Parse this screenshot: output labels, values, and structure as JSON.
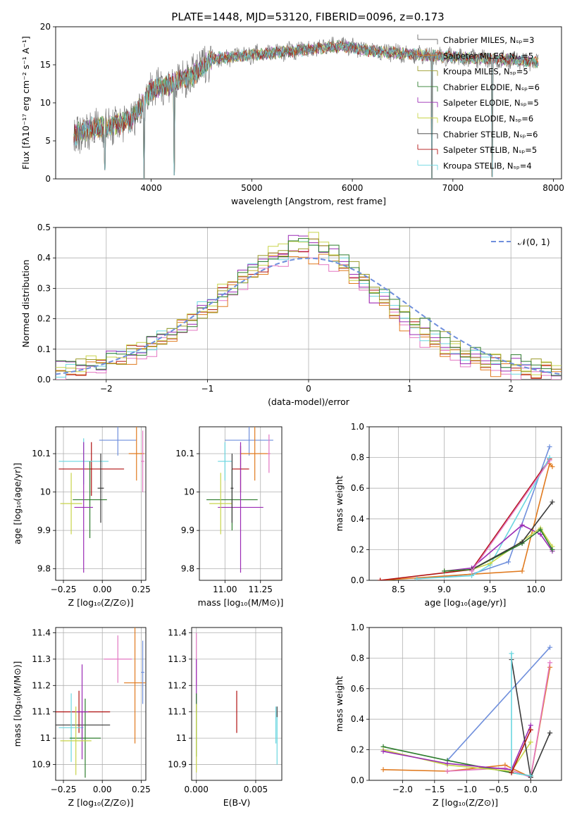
{
  "title": "PLATE=1448, MJD=53120, FIBERID=0096, z=0.173",
  "colors": [
    "#6d6d6d",
    "#e07a1f",
    "#9b9b2b",
    "#2e7d2e",
    "#9b2bb5",
    "#c8d44a",
    "#3a3a3a",
    "#b01010",
    "#6ad6e0",
    "#6f8fdc",
    "#e377c2",
    "#aaaaaa"
  ],
  "chart_data": [
    {
      "type": "line",
      "id": "spectrum",
      "xlabel": "wavelength [Angstrom, rest frame]",
      "ylabel": "Flux [fλ10⁻¹⁷ erg cm⁻² s⁻¹ A⁻¹]",
      "xlim": [
        3050,
        8080
      ],
      "ylim": [
        0,
        20
      ],
      "xticks": [
        4000,
        5000,
        6000,
        7000,
        8000
      ],
      "yticks": [
        0,
        5,
        10,
        15,
        20
      ],
      "legend": [
        "Chabrier MILES, Nₛₚ=3",
        "Salpeter MILES, Nₛₚ=5",
        "Kroupa MILES, Nₛₚ=5",
        "Chabrier ELODIE, Nₛₚ=6",
        "Salpeter ELODIE, Nₛₚ=5",
        "Kroupa ELODIE, Nₛₚ=6",
        "Chabrier STELIB, Nₛₚ=6",
        "Salpeter STELIB, Nₛₚ=5",
        "Kroupa STELIB, Nₛₚ=4"
      ],
      "legend_location": "right",
      "data_range": [
        3230,
        7850
      ],
      "continuum": [
        [
          3230,
          5.8
        ],
        [
          3400,
          6.6
        ],
        [
          3600,
          6.9
        ],
        [
          3800,
          7.8
        ],
        [
          3900,
          9.5
        ],
        [
          4000,
          11.8
        ],
        [
          4200,
          12.5
        ],
        [
          4400,
          13.5
        ],
        [
          4600,
          15.8
        ],
        [
          5000,
          16.3
        ],
        [
          5500,
          16.9
        ],
        [
          5900,
          17.5
        ],
        [
          6200,
          16.8
        ],
        [
          6800,
          16.2
        ],
        [
          7200,
          15.9
        ],
        [
          7600,
          15.6
        ],
        [
          7850,
          15.3
        ]
      ],
      "dips": [
        [
          3540,
          1.2
        ],
        [
          3930,
          0
        ],
        [
          4230,
          0.5
        ],
        [
          6790,
          0
        ],
        [
          7390,
          0.3
        ]
      ]
    },
    {
      "type": "line",
      "id": "residuals",
      "xlabel": "(data-model)/error",
      "ylabel": "Normed distribution",
      "xlim": [
        -2.5,
        2.5
      ],
      "ylim": [
        0,
        0.5
      ],
      "xticks": [
        -2,
        -1,
        0,
        1,
        2
      ],
      "xtick_labels": [
        "−2",
        "−1",
        "0",
        "1",
        "2"
      ],
      "yticks": [
        0,
        0.1,
        0.2,
        0.3,
        0.4,
        0.5
      ],
      "legend": [
        "𝒩(0, 1)"
      ],
      "bin_width": 0.1,
      "bins_start": -2.5,
      "series": [
        {
          "values": [
            0.02,
            0.02,
            0.03,
            0.03,
            0.04,
            0.05,
            0.06,
            0.07,
            0.08,
            0.1,
            0.12,
            0.14,
            0.16,
            0.18,
            0.21,
            0.23,
            0.26,
            0.29,
            0.32,
            0.34,
            0.36,
            0.38,
            0.39,
            0.4,
            0.41,
            0.4,
            0.39,
            0.38,
            0.36,
            0.33,
            0.3,
            0.27,
            0.24,
            0.21,
            0.18,
            0.15,
            0.13,
            0.11,
            0.09,
            0.07,
            0.06,
            0.05,
            0.04,
            0.03,
            0.03,
            0.02,
            0.02,
            0.02,
            0.02,
            0.01
          ]
        },
        {
          "values": [
            0.02,
            0.02,
            0.03,
            0.04,
            0.05,
            0.05,
            0.07,
            0.08,
            0.09,
            0.11,
            0.13,
            0.15,
            0.17,
            0.2,
            0.22,
            0.24,
            0.27,
            0.3,
            0.33,
            0.35,
            0.37,
            0.39,
            0.4,
            0.42,
            0.43,
            0.43,
            0.42,
            0.4,
            0.37,
            0.35,
            0.31,
            0.28,
            0.25,
            0.22,
            0.19,
            0.17,
            0.14,
            0.12,
            0.1,
            0.08,
            0.07,
            0.06,
            0.05,
            0.04,
            0.04,
            0.03,
            0.02,
            0.02,
            0.02,
            0.02
          ]
        },
        {
          "values": [
            0.02,
            0.03,
            0.03,
            0.04,
            0.04,
            0.06,
            0.07,
            0.07,
            0.09,
            0.1,
            0.12,
            0.14,
            0.16,
            0.19,
            0.21,
            0.24,
            0.27,
            0.29,
            0.32,
            0.35,
            0.38,
            0.4,
            0.42,
            0.44,
            0.45,
            0.44,
            0.42,
            0.39,
            0.36,
            0.33,
            0.3,
            0.26,
            0.24,
            0.21,
            0.18,
            0.15,
            0.13,
            0.11,
            0.09,
            0.08,
            0.06,
            0.05,
            0.04,
            0.04,
            0.03,
            0.03,
            0.02,
            0.02,
            0.02,
            0.02
          ]
        },
        {
          "values": [
            0.01,
            0.02,
            0.02,
            0.03,
            0.03,
            0.04,
            0.05,
            0.06,
            0.07,
            0.09,
            0.11,
            0.12,
            0.14,
            0.17,
            0.19,
            0.22,
            0.25,
            0.27,
            0.3,
            0.33,
            0.36,
            0.38,
            0.4,
            0.41,
            0.43,
            0.42,
            0.41,
            0.39,
            0.37,
            0.34,
            0.31,
            0.28,
            0.25,
            0.23,
            0.2,
            0.17,
            0.15,
            0.12,
            0.11,
            0.09,
            0.07,
            0.06,
            0.05,
            0.04,
            0.03,
            0.03,
            0.02,
            0.02,
            0.02,
            0.01
          ]
        }
      ],
      "gaussian": {
        "mean": 0,
        "sigma": 1
      }
    },
    {
      "type": "scatter",
      "id": "age-vs-Z",
      "xlabel": "Z [log₁₀(Z/Z⊙)]",
      "ylabel": "age  [log₁₀(age/yr)]",
      "xlim": [
        -0.3,
        0.28
      ],
      "ylim": [
        9.77,
        10.17
      ],
      "xticks": [
        -0.25,
        0,
        0.25
      ],
      "xtick_labels": [
        "−0.25",
        "0.00",
        "0.25"
      ],
      "yticks": [
        9.8,
        9.9,
        10.0,
        10.1
      ],
      "points": [
        {
          "x": 0.1,
          "y": 10.135,
          "xerr": 0.12,
          "yerr": 0.04,
          "c": 9
        },
        {
          "x": 0.22,
          "y": 10.1,
          "xerr": 0.05,
          "yerr": 0.07,
          "c": 1
        },
        {
          "x": -0.07,
          "y": 10.06,
          "xerr": 0.21,
          "yerr": 0.07,
          "c": 7
        },
        {
          "x": -0.12,
          "y": 10.08,
          "xerr": 0.16,
          "yerr": 0.06,
          "c": 8
        },
        {
          "x": -0.08,
          "y": 9.98,
          "xerr": 0.11,
          "yerr": 0.1,
          "c": 3
        },
        {
          "x": -0.12,
          "y": 9.96,
          "xerr": 0.06,
          "yerr": 0.17,
          "c": 4
        },
        {
          "x": -0.2,
          "y": 9.97,
          "xerr": 0.07,
          "yerr": 0.08,
          "c": 5
        },
        {
          "x": -0.01,
          "y": 10.01,
          "xerr": 0.02,
          "yerr": 0.09,
          "c": 6
        },
        {
          "x": 0.26,
          "y": 10.08,
          "xerr": 0.01,
          "yerr": 0.08,
          "c": 10
        }
      ]
    },
    {
      "type": "scatter",
      "id": "age-vs-mass",
      "xlabel": "mass [log₁₀(M/M⊙)]",
      "ylabel": "",
      "xlim": [
        10.82,
        11.4
      ],
      "ylim": [
        9.77,
        10.17
      ],
      "xticks": [
        11.0,
        11.25
      ],
      "xtick_labels": [
        "11.00",
        "11.25"
      ],
      "yticks": [
        9.8,
        9.9,
        10.0,
        10.1
      ],
      "points": [
        {
          "x": 11.17,
          "y": 10.135,
          "xerr": 0.17,
          "yerr": 0.04,
          "c": 9
        },
        {
          "x": 11.21,
          "y": 10.1,
          "xerr": 0.1,
          "yerr": 0.07,
          "c": 1
        },
        {
          "x": 11.11,
          "y": 10.06,
          "xerr": 0.06,
          "yerr": 0.06,
          "c": 7
        },
        {
          "x": 11.0,
          "y": 10.08,
          "xerr": 0.05,
          "yerr": 0.05,
          "c": 8
        },
        {
          "x": 11.05,
          "y": 9.98,
          "xerr": 0.18,
          "yerr": 0.08,
          "c": 3
        },
        {
          "x": 11.11,
          "y": 9.96,
          "xerr": 0.16,
          "yerr": 0.17,
          "c": 4
        },
        {
          "x": 10.97,
          "y": 9.97,
          "xerr": 0.08,
          "yerr": 0.08,
          "c": 5
        },
        {
          "x": 11.05,
          "y": 10.01,
          "xerr": 0.01,
          "yerr": 0.09,
          "c": 6
        },
        {
          "x": 11.31,
          "y": 10.1,
          "xerr": 0.01,
          "yerr": 0.05,
          "c": 10
        }
      ]
    },
    {
      "type": "line",
      "id": "massweight-vs-age",
      "xlabel": "age  [log₁₀(age/yr)]",
      "ylabel": "mass weight",
      "xlim": [
        8.18,
        10.28
      ],
      "ylim": [
        0,
        1.0
      ],
      "xticks": [
        8.5,
        9.0,
        9.5,
        10.0
      ],
      "xtick_labels": [
        "8.5",
        "9.0",
        "9.5",
        "10.0"
      ],
      "yticks": [
        0,
        0.2,
        0.4,
        0.6,
        0.8,
        1.0
      ],
      "series": [
        {
          "c": 9,
          "x": [
            8.7,
            9.3,
            9.7,
            10.15
          ],
          "y": [
            0.01,
            0.04,
            0.12,
            0.87
          ]
        },
        {
          "c": 1,
          "x": [
            8.3,
            9.3,
            9.85,
            10.15,
            10.18
          ],
          "y": [
            0.0,
            0.04,
            0.06,
            0.76,
            0.74
          ]
        },
        {
          "c": 7,
          "x": [
            8.3,
            9.3,
            10.15
          ],
          "y": [
            0.0,
            0.07,
            0.79
          ]
        },
        {
          "c": 8,
          "x": [
            8.7,
            9.3,
            9.5,
            10.15
          ],
          "y": [
            0.01,
            0.03,
            0.1,
            0.8
          ]
        },
        {
          "c": 4,
          "x": [
            9.0,
            9.3,
            9.85,
            10.05,
            10.18
          ],
          "y": [
            0.06,
            0.08,
            0.36,
            0.3,
            0.19
          ]
        },
        {
          "c": 5,
          "x": [
            9.0,
            9.3,
            9.5,
            10.05,
            10.18
          ],
          "y": [
            0.06,
            0.07,
            0.11,
            0.34,
            0.22
          ]
        },
        {
          "c": 3,
          "x": [
            9.0,
            9.3,
            9.85,
            10.05,
            10.18
          ],
          "y": [
            0.06,
            0.07,
            0.24,
            0.33,
            0.2
          ]
        },
        {
          "c": 6,
          "x": [
            9.3,
            9.85,
            10.18
          ],
          "y": [
            0.07,
            0.25,
            0.51
          ]
        },
        {
          "c": 10,
          "x": [
            9.3,
            10.15
          ],
          "y": [
            0.06,
            0.78
          ]
        }
      ]
    },
    {
      "type": "scatter",
      "id": "mass-vs-Z",
      "xlabel": "Z [log₁₀(Z/Z⊙)]",
      "ylabel": "mass [log₁₀(M/M⊙)]",
      "xlim": [
        -0.3,
        0.28
      ],
      "ylim": [
        10.84,
        11.42
      ],
      "xticks": [
        -0.25,
        0,
        0.25
      ],
      "xtick_labels": [
        "−0.25",
        "0.00",
        "0.25"
      ],
      "yticks": [
        10.9,
        11.0,
        11.1,
        11.2,
        11.3,
        11.4
      ],
      "points": [
        {
          "x": 0.1,
          "y": 11.3,
          "xerr": 0.09,
          "yerr": 0.09,
          "c": 10
        },
        {
          "x": 0.21,
          "y": 11.21,
          "xerr": 0.07,
          "yerr": 0.23,
          "c": 1
        },
        {
          "x": -0.15,
          "y": 11.1,
          "xerr": 0.2,
          "yerr": 0.08,
          "c": 7
        },
        {
          "x": -0.13,
          "y": 11.05,
          "xerr": 0.18,
          "yerr": 0.05,
          "c": 6
        },
        {
          "x": -0.2,
          "y": 11.04,
          "xerr": 0.08,
          "yerr": 0.13,
          "c": 8
        },
        {
          "x": -0.11,
          "y": 11.0,
          "xerr": 0.1,
          "yerr": 0.15,
          "c": 3
        },
        {
          "x": -0.13,
          "y": 11.1,
          "xerr": 0.04,
          "yerr": 0.18,
          "c": 4
        },
        {
          "x": -0.17,
          "y": 10.99,
          "xerr": 0.1,
          "yerr": 0.13,
          "c": 5
        },
        {
          "x": 0.26,
          "y": 11.25,
          "xerr": 0.01,
          "yerr": 0.12,
          "c": 9
        }
      ]
    },
    {
      "type": "scatter",
      "id": "mass-vs-ebv",
      "xlabel": "E(B-V)",
      "ylabel": "",
      "xlim": [
        -0.0004,
        0.0072
      ],
      "ylim": [
        10.84,
        11.42
      ],
      "xticks": [
        0,
        0.005
      ],
      "xtick_labels": [
        "0.000",
        "0.005"
      ],
      "yticks": [
        10.9,
        11.0,
        11.1,
        11.2,
        11.3,
        11.4
      ],
      "points": [
        {
          "x": 0.0,
          "y": 11.3,
          "xerr": 0,
          "yerr": 0.1,
          "c": 10
        },
        {
          "x": 0.0,
          "y": 11.2,
          "xerr": 0,
          "yerr": 0.1,
          "c": 4
        },
        {
          "x": 0.0,
          "y": 11.05,
          "xerr": 0,
          "yerr": 0.12,
          "c": 3
        },
        {
          "x": 0.0,
          "y": 11.0,
          "xerr": 0,
          "yerr": 0.13,
          "c": 5
        },
        {
          "x": 0.0034,
          "y": 11.1,
          "xerr": 0,
          "yerr": 0.08,
          "c": 7
        },
        {
          "x": 0.0067,
          "y": 11.05,
          "xerr": 0,
          "yerr": 0.07,
          "c": 8
        },
        {
          "x": 0.0068,
          "y": 11.0,
          "xerr": 0,
          "yerr": 0.1,
          "c": 8
        },
        {
          "x": 0.0068,
          "y": 11.1,
          "xerr": 0,
          "yerr": 0.02,
          "c": 6
        }
      ]
    },
    {
      "type": "line",
      "id": "massweight-vs-Z",
      "xlabel": "Z [log₁₀(Z/Z⊙)]",
      "ylabel": "mass weight",
      "xlim": [
        -2.52,
        0.48
      ],
      "ylim": [
        0,
        1.0
      ],
      "xticks": [
        -2.0,
        -1.5,
        -1.0,
        -0.5,
        0.0
      ],
      "xtick_labels": [
        "−2.0",
        "−1.5",
        "−1.0",
        "−0.5",
        "0.0"
      ],
      "yticks": [
        0,
        0.2,
        0.4,
        0.6,
        0.8,
        1.0
      ],
      "series": [
        {
          "c": 9,
          "x": [
            -1.3,
            0.3
          ],
          "y": [
            0.13,
            0.87
          ]
        },
        {
          "c": 1,
          "x": [
            -2.3,
            -1.3,
            -0.4,
            0.0,
            0.3
          ],
          "y": [
            0.07,
            0.06,
            0.1,
            0.02,
            0.74
          ]
        },
        {
          "c": 10,
          "x": [
            -1.3,
            -0.4,
            0.0,
            0.3
          ],
          "y": [
            0.06,
            0.08,
            0.02,
            0.77
          ]
        },
        {
          "c": 3,
          "x": [
            -2.3,
            -1.3,
            -0.3,
            0.0
          ],
          "y": [
            0.22,
            0.13,
            0.05,
            0.03
          ]
        },
        {
          "c": 5,
          "x": [
            -2.3,
            -1.3,
            -0.3,
            0.0
          ],
          "y": [
            0.2,
            0.1,
            0.06,
            0.25
          ]
        },
        {
          "c": 4,
          "x": [
            -2.3,
            -1.3,
            -0.3,
            0.0
          ],
          "y": [
            0.19,
            0.11,
            0.07,
            0.36
          ]
        },
        {
          "c": 6,
          "x": [
            -0.3,
            0.0,
            0.3
          ],
          "y": [
            0.79,
            0.02,
            0.31
          ]
        },
        {
          "c": 8,
          "x": [
            -0.3,
            -0.3,
            0.0
          ],
          "y": [
            0.83,
            0.05,
            0.03
          ]
        },
        {
          "c": 7,
          "x": [
            -0.3,
            0.0
          ],
          "y": [
            0.05,
            0.33
          ]
        }
      ]
    }
  ]
}
